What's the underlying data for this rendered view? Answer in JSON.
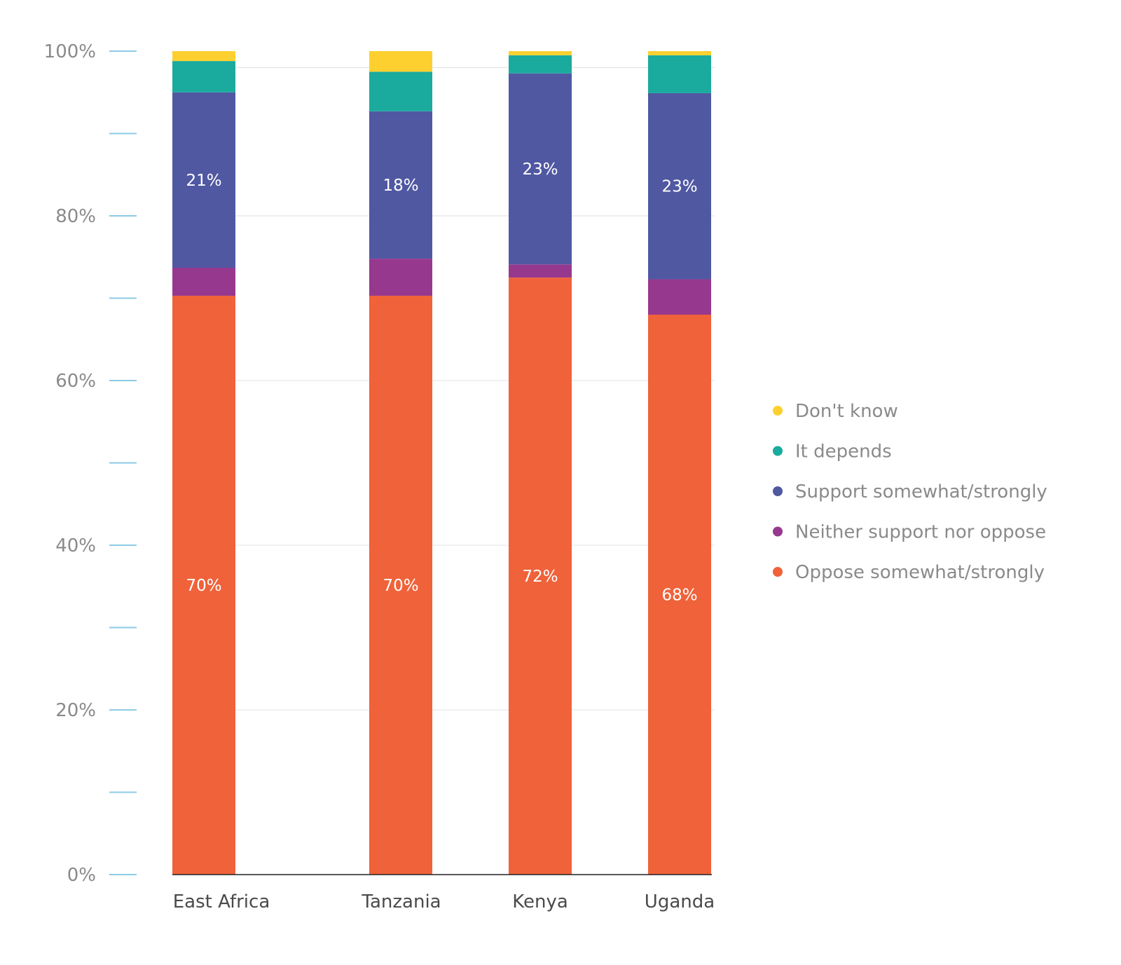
{
  "chart_data": {
    "type": "bar",
    "stacked": true,
    "title": "",
    "xlabel": "",
    "ylabel": "",
    "ylim": [
      0,
      100
    ],
    "y_ticks": [
      "0%",
      "20%",
      "40%",
      "60%",
      "80%",
      "100%"
    ],
    "y_tick_values": [
      0,
      20,
      40,
      60,
      80,
      100
    ],
    "categories": [
      "East Africa",
      "Tanzania",
      "Kenya",
      "Uganda"
    ],
    "series": [
      {
        "name": "Oppose somewhat/strongly",
        "color": "#f0623a",
        "values": [
          70.3,
          70.3,
          72.5,
          68.0
        ],
        "labels": [
          "70%",
          "70%",
          "72%",
          "68%"
        ]
      },
      {
        "name": "Neither support nor oppose",
        "color": "#97388f",
        "values": [
          3.4,
          4.5,
          1.6,
          4.3
        ],
        "labels": [
          "",
          "",
          "",
          ""
        ]
      },
      {
        "name": "Support somewhat/strongly",
        "color": "#5058a2",
        "values": [
          21.3,
          17.9,
          23.2,
          22.6
        ],
        "labels": [
          "21%",
          "18%",
          "23%",
          "23%"
        ]
      },
      {
        "name": "It depends",
        "color": "#1aab9e",
        "values": [
          3.8,
          4.8,
          2.2,
          4.6
        ],
        "labels": [
          "",
          "",
          "",
          ""
        ]
      },
      {
        "name": "Don't know",
        "color": "#fdd02f",
        "values": [
          1.2,
          2.5,
          0.5,
          0.5
        ],
        "labels": [
          "",
          "",
          "",
          ""
        ]
      }
    ],
    "legend": {
      "placement": "right",
      "order": [
        "Don't know",
        "It depends",
        "Support somewhat/strongly",
        "Neither support nor oppose",
        "Oppose somewhat/strongly"
      ]
    }
  }
}
